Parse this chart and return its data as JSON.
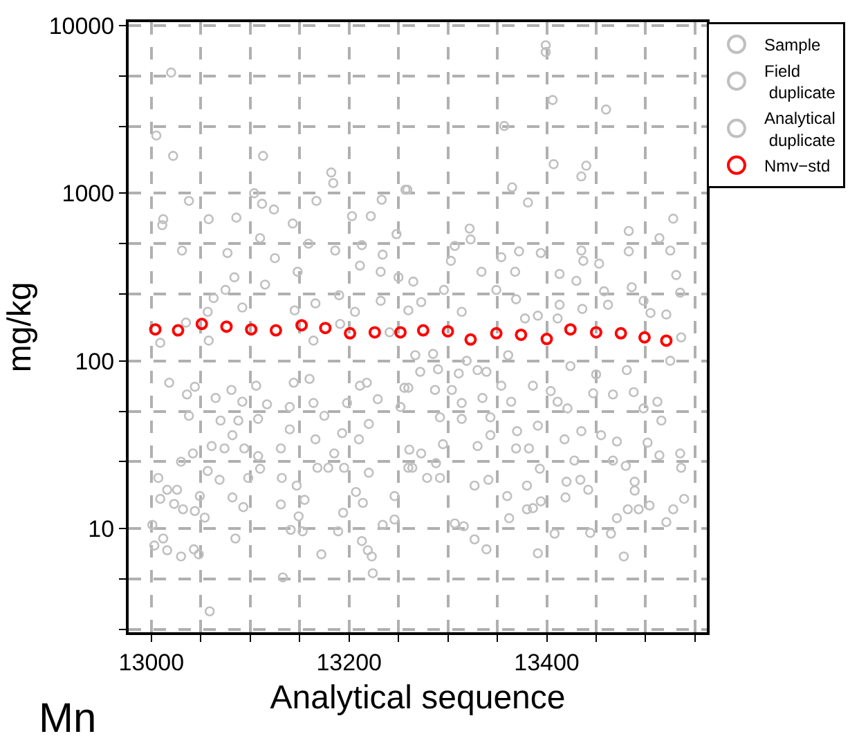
{
  "chart_data": {
    "type": "scatter",
    "xlabel": "Analytical sequence",
    "ylabel": "mg/kg",
    "annotations": [
      "Mn"
    ],
    "log": "y",
    "grid": true,
    "legend": "top right",
    "marker": "circle",
    "xlim": [
      12977,
      13562
    ],
    "ylim": [
      2.4,
      10500
    ],
    "xticks": [
      13000,
      {
        "value": 13050,
        "label": null
      },
      {
        "value": 13100,
        "label": null
      },
      {
        "value": 13150,
        "label": null
      },
      13200,
      {
        "value": 13250,
        "label": null
      },
      {
        "value": 13300,
        "label": null
      },
      {
        "value": 13350,
        "label": null
      },
      13400,
      {
        "value": 13450,
        "label": null
      },
      {
        "value": 13500,
        "label": null
      },
      {
        "value": 13550,
        "label": null
      }
    ],
    "yticks": [
      {
        "value": 2.5,
        "label": null
      },
      {
        "value": 5,
        "label": null
      },
      10,
      {
        "value": 25,
        "label": null
      },
      {
        "value": 50,
        "label": null
      },
      100,
      {
        "value": 250,
        "label": null
      },
      {
        "value": 500,
        "label": null
      },
      1000,
      {
        "value": 2500,
        "label": null
      },
      {
        "value": 5000,
        "label": null
      },
      10000
    ],
    "series": [
      {
        "name": "Sample",
        "color": "#c0c0c0",
        "x": [
          13020,
          13005,
          13022,
          13113,
          13038,
          13104,
          13112,
          13124,
          13167,
          13257,
          13012,
          13011,
          13058,
          13086,
          13143,
          13203,
          13222,
          13233,
          13031,
          13077,
          13110,
          13125,
          13159,
          13186,
          13213,
          13234,
          13248,
          13084,
          13115,
          13148,
          13211,
          13232,
          13250,
          13075,
          13063,
          13145,
          13166,
          13190,
          13232,
          13260,
          13092,
          13057,
          13035,
          13206,
          13009,
          13058,
          13164,
          13191,
          13241,
          13406,
          13460,
          13357,
          13407,
          13435,
          13440,
          13365,
          13381,
          13259,
          13322,
          13323,
          13307,
          13303,
          13372,
          13354,
          13394,
          13435,
          13437,
          13453,
          13483,
          13514,
          13528,
          13525,
          13531,
          13483,
          13368,
          13413,
          13334,
          13430,
          13265,
          13486,
          13535,
          13296,
          13349,
          13369,
          13413,
          13273,
          13458,
          13498,
          13505,
          13314,
          13391,
          13411,
          13436,
          13462,
          13521,
          13536,
          13378,
          13018,
          13044,
          13081,
          13106,
          13144,
          13160,
          13211,
          13218,
          13256,
          13036,
          13065,
          13092,
          13117,
          13140,
          13164,
          13198,
          13229,
          13038,
          13070,
          13088,
          13108,
          13140,
          13166,
          13175,
          13193,
          13210,
          13220,
          13252,
          13082,
          13030,
          13042,
          13061,
          13074,
          13094,
          13108,
          13131,
          13185,
          13007,
          13016,
          13026,
          13009,
          13023,
          13032,
          13049,
          13057,
          13069,
          13082,
          13093,
          13098,
          13110,
          13132,
          13131,
          13147,
          13155,
          13149,
          13141,
          13044,
          13054,
          13001,
          13003,
          13012,
          13016,
          13030,
          13043,
          13048,
          13085,
          13059,
          13133,
          13153,
          13168,
          13179,
          13195,
          13194,
          13172,
          13189,
          13207,
          13214,
          13213,
          13219,
          13223,
          13224,
          13234,
          13246,
          13220,
          13246,
          13260,
          13267,
          13285,
          13319,
          13330,
          13361,
          13424,
          13450,
          13481,
          13525,
          13272,
          13290,
          13311,
          13339,
          13260,
          13287,
          13304,
          13314,
          13335,
          13354,
          13364,
          13386,
          13404,
          13411,
          13421,
          13447,
          13467,
          13488,
          13498,
          13512,
          13516,
          13292,
          13314,
          13343,
          13370,
          13391,
          13418,
          13435,
          13455,
          13471,
          13502,
          13261,
          13273,
          13288,
          13295,
          13330,
          13343,
          13369,
          13382,
          13428,
          13467,
          13480,
          13514,
          13535,
          13536,
          13264,
          13279,
          13292,
          13327,
          13341,
          13360,
          13380,
          13393,
          13420,
          13434,
          13442,
          13489,
          13489,
          13380,
          13386,
          13394,
          13362,
          13419,
          13471,
          13482,
          13493,
          13504,
          13528,
          13539,
          13521,
          13307,
          13316,
          13327,
          13339,
          13391,
          13408,
          13444,
          13465,
          13478
        ],
        "values": [
          5250,
          2210,
          1670,
          1670,
          900,
          1000,
          865,
          800,
          900,
          1050,
          700,
          645,
          700,
          715,
          660,
          730,
          730,
          915,
          455,
          440,
          540,
          410,
          500,
          455,
          490,
          430,
          570,
          315,
          285,
          340,
          370,
          340,
          315,
          265,
          237,
          200,
          220,
          246,
          228,
          200,
          208,
          196,
          169,
          196,
          128,
          132,
          132,
          166,
          148,
          3600,
          3160,
          2520,
          1490,
          1260,
          1460,
          1085,
          880,
          1050,
          615,
          530,
          485,
          395,
          450,
          415,
          440,
          455,
          395,
          380,
          595,
          540,
          705,
          455,
          325,
          450,
          340,
          330,
          340,
          300,
          297,
          275,
          255,
          265,
          265,
          233,
          216,
          224,
          260,
          228,
          193,
          196,
          186,
          179,
          204,
          216,
          189,
          138,
          179,
          74,
          70,
          67,
          71,
          74,
          78,
          71,
          74,
          69,
          63,
          60,
          57,
          55,
          53,
          56,
          56,
          59,
          47,
          44,
          44,
          45,
          39,
          34,
          47,
          37,
          34,
          42,
          53,
          36,
          25,
          28,
          31,
          30,
          30,
          27,
          30,
          28,
          20,
          17,
          17,
          15,
          14,
          13,
          15.6,
          22,
          19.5,
          15.3,
          13.4,
          20,
          22.7,
          20,
          13.9,
          18,
          14.8,
          11.8,
          9.8,
          12.7,
          11.6,
          10.5,
          7.9,
          8.7,
          7.4,
          6.8,
          7.5,
          7,
          8.7,
          3.2,
          5.1,
          9.6,
          23,
          23,
          23,
          12.4,
          7,
          9.6,
          16.5,
          14.2,
          8.4,
          7.4,
          6.8,
          5.4,
          10.5,
          11.3,
          21.5,
          15.6,
          23,
          108,
          110,
          100,
          88,
          108,
          93,
          83,
          88,
          100,
          86,
          89,
          84,
          86,
          69,
          67,
          67,
          56,
          60,
          71,
          57,
          71,
          66,
          57,
          52,
          64,
          63,
          65,
          52,
          57,
          44,
          46,
          45,
          46,
          38,
          41,
          34,
          38,
          36,
          33,
          32.5,
          29.5,
          28,
          24.5,
          31.8,
          31,
          36,
          30,
          30,
          25.4,
          25.4,
          23.6,
          27.3,
          28,
          23,
          23,
          20,
          20,
          18,
          19.5,
          15.6,
          18,
          22.7,
          19,
          19.5,
          17,
          19,
          16.8,
          13,
          13.2,
          14.5,
          11.5,
          15.3,
          11.5,
          13,
          13,
          13.7,
          13,
          15,
          10.9,
          10.7,
          10.3,
          8.6,
          7.5,
          7.1,
          9.3,
          9.4,
          9.3,
          6.8
        ]
      },
      {
        "name": "Field duplicate",
        "color": "#c0c0c0",
        "x": [
          13399,
          13399
        ],
        "values": [
          7640,
          6950
        ]
      },
      {
        "name": "Analytical duplicate",
        "color": "#c0c0c0",
        "x": [
          13182,
          13184
        ],
        "values": [
          1330,
          1150
        ]
      },
      {
        "name": "Nmv−std",
        "color": "#ff0000",
        "x": [
          13004,
          13027,
          13051,
          13076,
          13101,
          13126,
          13152,
          13176,
          13201,
          13226,
          13252,
          13275,
          13300,
          13323,
          13349,
          13374,
          13400,
          13424,
          13450,
          13475,
          13499,
          13521
        ],
        "values": [
          154,
          152,
          166,
          160,
          154,
          152,
          163,
          157,
          146,
          148,
          148,
          152,
          150,
          134,
          146,
          143,
          135,
          154,
          148,
          146,
          138,
          132
        ]
      }
    ]
  }
}
